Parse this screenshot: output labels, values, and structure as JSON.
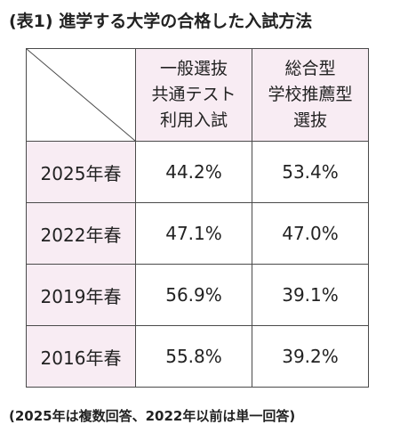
{
  "title": "(表1) 進学する大学の合格した入試方法",
  "table": {
    "columns": [
      [
        "一般選抜",
        "共通テスト",
        "利用入試"
      ],
      [
        "総合型",
        "学校推薦型",
        "選抜"
      ]
    ],
    "rows": [
      {
        "label": "2025年春",
        "values": [
          "44.2%",
          "53.4%"
        ]
      },
      {
        "label": "2022年春",
        "values": [
          "47.1%",
          "47.0%"
        ]
      },
      {
        "label": "2019年春",
        "values": [
          "56.9%",
          "39.1%"
        ]
      },
      {
        "label": "2016年春",
        "values": [
          "55.8%",
          "39.2%"
        ]
      }
    ]
  },
  "note": "(2025年は複数回答、2022年以前は単一回答)",
  "colors": {
    "header_fill": "#f8ecf3",
    "border": "#4a4a4a",
    "text": "#222222"
  }
}
